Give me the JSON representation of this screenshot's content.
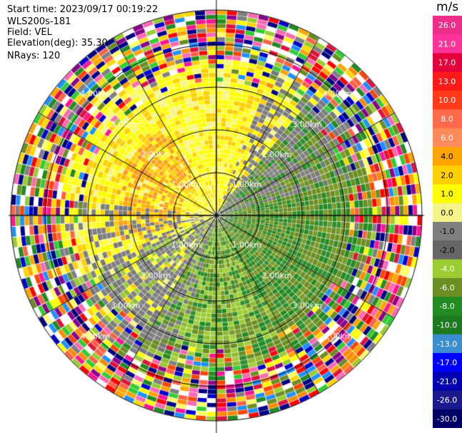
{
  "header": {
    "start_time": "Start time: 2023/09/17 00:19:22",
    "instrument": "WLS200s-181",
    "field": "Field: VEL",
    "elevation": "Elevation(deg): 35.30",
    "nrays": "NRays: 120"
  },
  "chart_data": {
    "type": "heatmap",
    "projection": "polar PPI scan",
    "field": "VEL",
    "units": "m/s",
    "elevation_deg": 35.3,
    "n_rays": 120,
    "range_rings_km": [
      1.0,
      2.0,
      3.0,
      4.0
    ],
    "ring_labels": [
      "1.00km",
      "2.00km",
      "3.00km",
      "4.00km"
    ],
    "max_range_km": 4.8,
    "colorbar": {
      "ticks": [
        "26.0",
        "21.0",
        "17.0",
        "13.0",
        "10.0",
        "8.0",
        "6.0",
        "4.0",
        "2.0",
        "1.0",
        "0.0",
        "-1.0",
        "-2.0",
        "-4.0",
        "-6.0",
        "-8.0",
        "-10.0",
        "-13.0",
        "-17.0",
        "-21.0",
        "-26.0",
        "-30.0"
      ],
      "colors": [
        "#ee2f8a",
        "#ff3399",
        "#e4003b",
        "#ff1a1a",
        "#ff3b1a",
        "#ff6a4d",
        "#ff8a5c",
        "#ffa500",
        "#ffd000",
        "#ffff00",
        "#f5f58a",
        "#7f7f7f",
        "#666666",
        "#9acd32",
        "#6b8e23",
        "#228b22",
        "#1e7a1e",
        "#3c8dd0",
        "#0000ff",
        "#0000b0",
        "#1a1a8c",
        "#000066"
      ]
    },
    "sector_pattern": {
      "approaching_sector_azimuth_deg": [
        200,
        340
      ],
      "approaching_color": "yellow/orange (+2 to +6 m/s)",
      "receding_sector_azimuth_deg": [
        60,
        200
      ],
      "receding_color": "green (-2 to -8 m/s)",
      "outer_noise_range_km": [
        3.3,
        4.8
      ]
    }
  }
}
